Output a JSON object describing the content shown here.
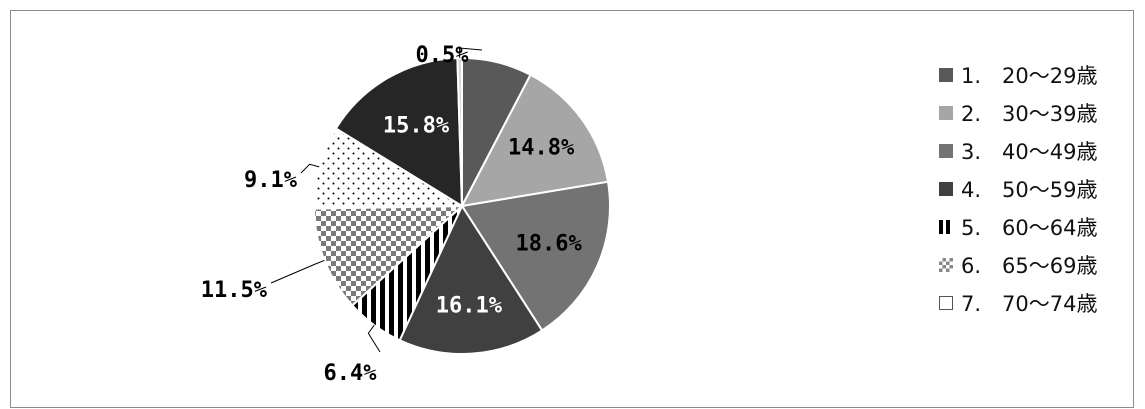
{
  "chart_data": {
    "type": "pie",
    "title": "",
    "slices": [
      {
        "label": "1.　20～29歳",
        "value": 7.7,
        "value_label": "",
        "color": "#595959",
        "pattern": "solid"
      },
      {
        "label": "2.　30～39歳",
        "value": 14.8,
        "value_label": "14.8%",
        "color": "#a6a6a6",
        "pattern": "solid"
      },
      {
        "label": "3.　40～49歳",
        "value": 18.6,
        "value_label": "18.6%",
        "color": "#737373",
        "pattern": "solid"
      },
      {
        "label": "4.　50～59歳",
        "value": 16.1,
        "value_label": "16.1%",
        "color": "#404040",
        "pattern": "solid"
      },
      {
        "label": "5.　60～64歳",
        "value": 6.4,
        "value_label": "6.4%",
        "color": "#000000",
        "pattern": "vstripes"
      },
      {
        "label": "6.　65～69歳",
        "value": 11.5,
        "value_label": "11.5%",
        "color": "#808080",
        "pattern": "checker"
      },
      {
        "label": "7.　70～74歳",
        "value": 9.1,
        "value_label": "9.1%",
        "color": "#ffffff",
        "pattern": "dots"
      },
      {
        "label": "",
        "value": 15.8,
        "value_label": "15.8%",
        "color": "#262626",
        "pattern": "solid"
      },
      {
        "label": "",
        "value": 0.5,
        "value_label": "0.5%",
        "color": "#d9d9d9",
        "pattern": "solid"
      }
    ],
    "legend_position": "right"
  }
}
